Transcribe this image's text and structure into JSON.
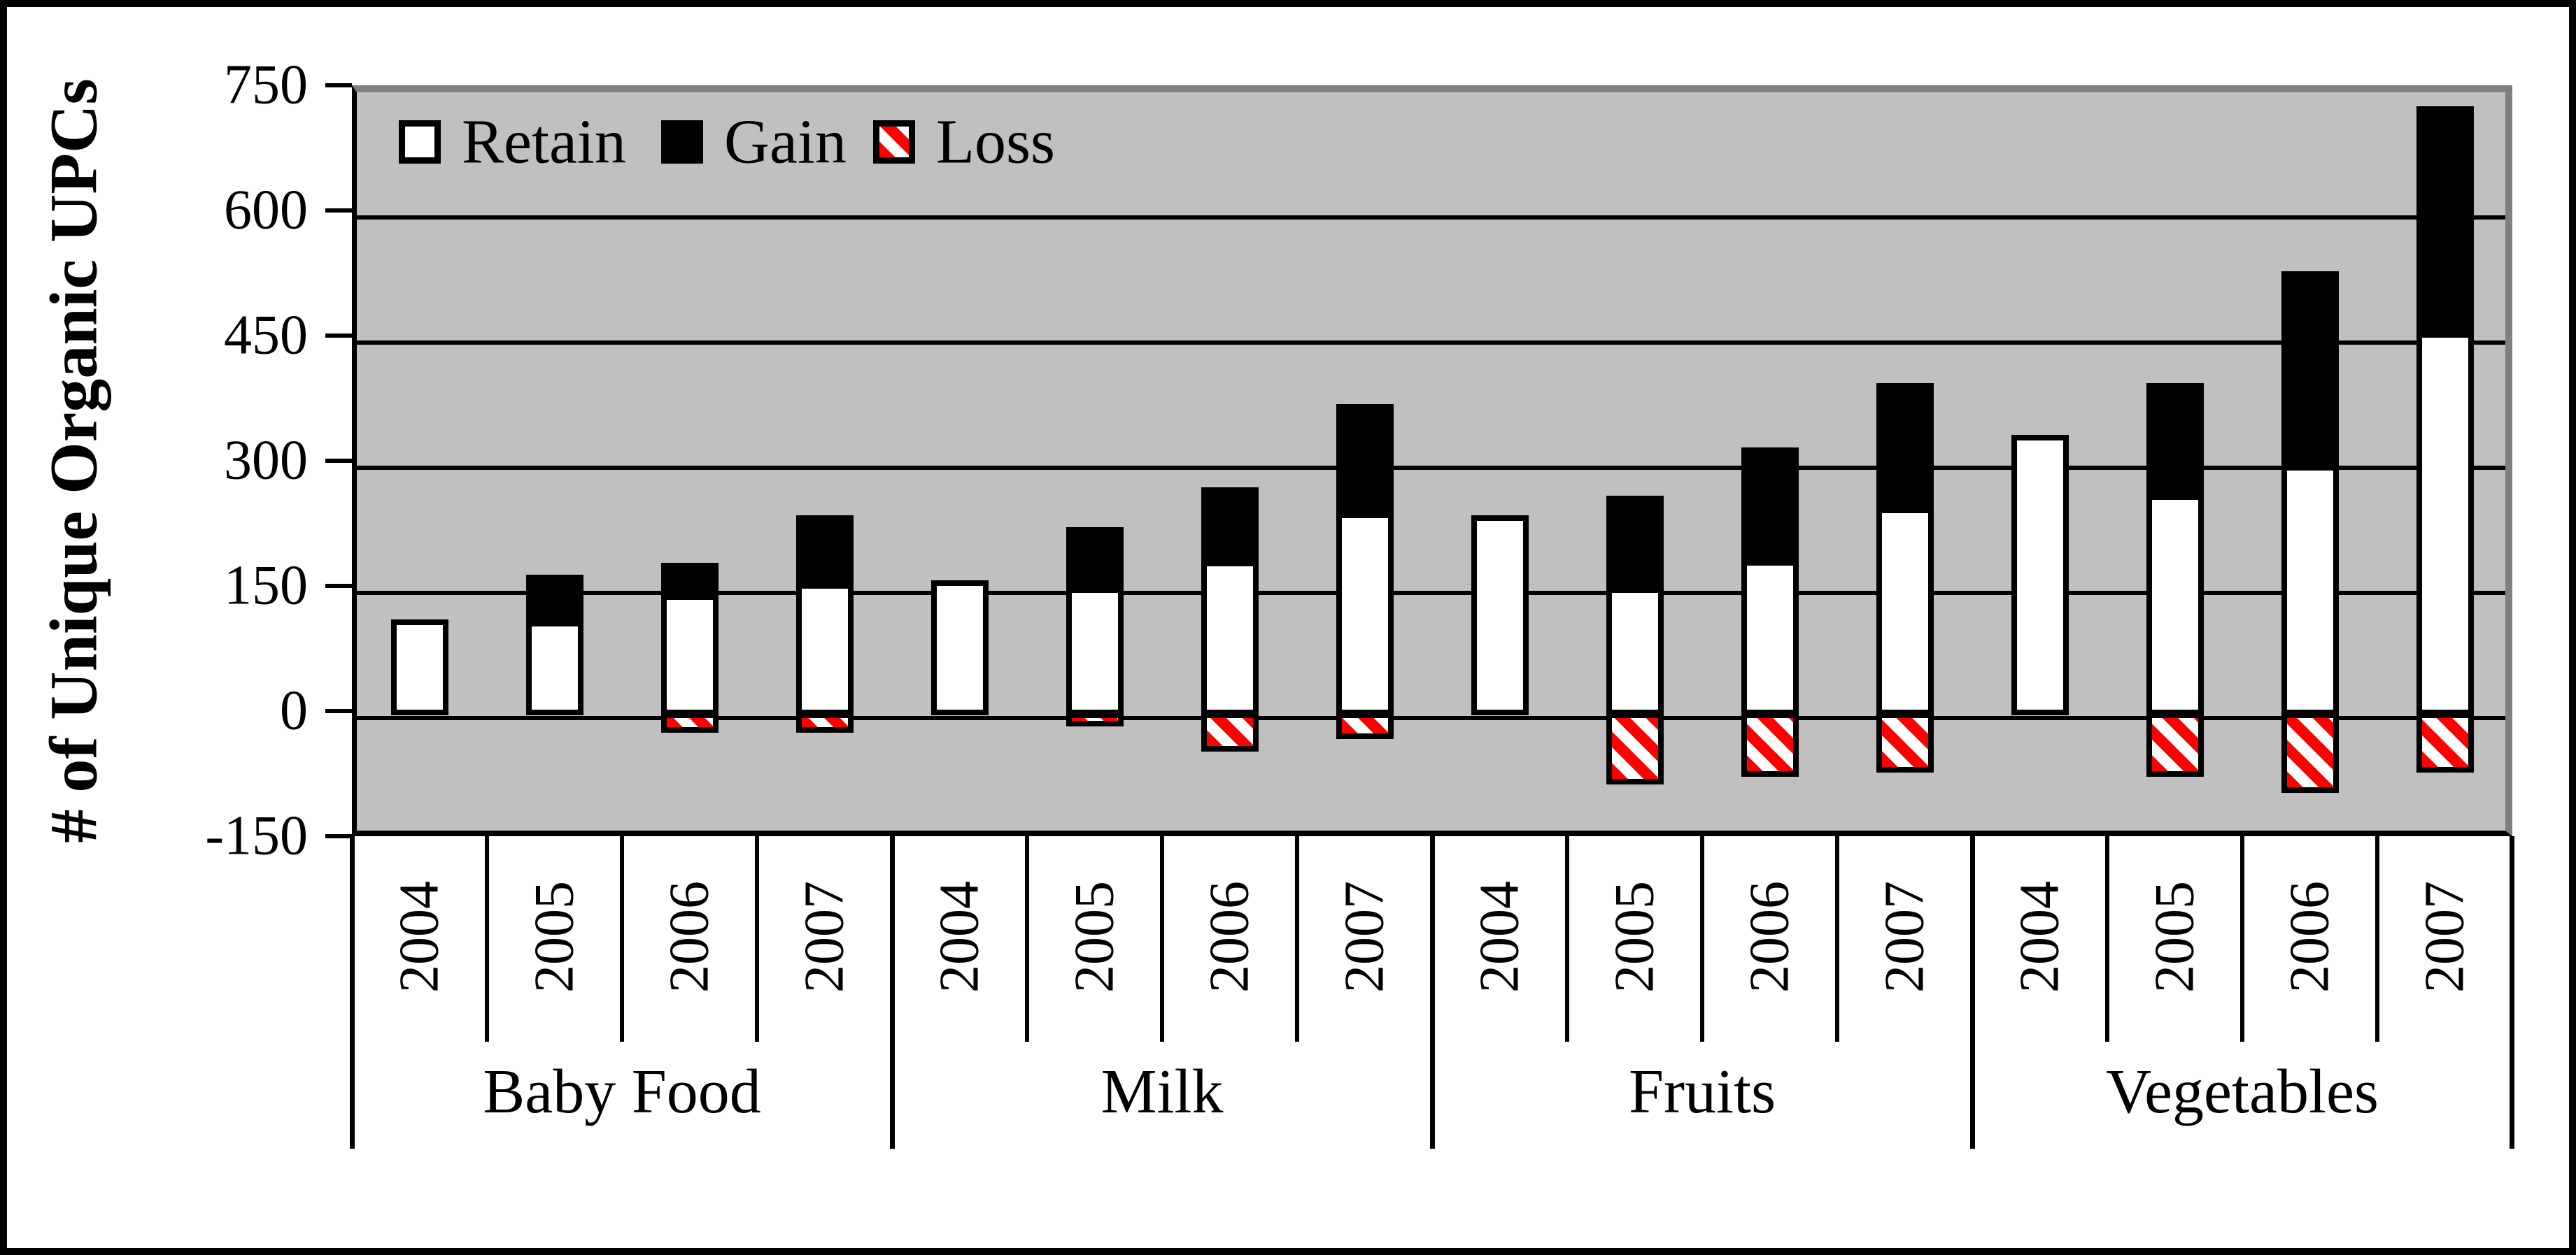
{
  "chart_data": {
    "type": "bar",
    "subtype": "stacked-vertical",
    "title": "",
    "ylabel": "# of Unique Organic UPCs",
    "xlabel": "",
    "ylim": [
      -150,
      750
    ],
    "yticks": [
      750,
      600,
      450,
      300,
      150,
      0,
      -150
    ],
    "gridlines_at": [
      600,
      450,
      300,
      150,
      0
    ],
    "grid": true,
    "legend_position": "top-left-inside",
    "legend": [
      {
        "name": "Retain",
        "style": "white-solid"
      },
      {
        "name": "Gain",
        "style": "black-solid"
      },
      {
        "name": "Loss",
        "style": "red-diagonal-hatch"
      }
    ],
    "categories": [
      "Baby Food",
      "Milk",
      "Fruits",
      "Vegetables"
    ],
    "years": [
      "2004",
      "2005",
      "2006",
      "2007"
    ],
    "groups": [
      {
        "category": "Baby Food",
        "bars": [
          {
            "year": "2004",
            "retain": 110,
            "gain": 0,
            "loss": 0
          },
          {
            "year": "2005",
            "retain": 108,
            "gain": 55,
            "loss": 0
          },
          {
            "year": "2006",
            "retain": 140,
            "gain": 38,
            "loss": -18
          },
          {
            "year": "2007",
            "retain": 153,
            "gain": 82,
            "loss": -18
          }
        ]
      },
      {
        "category": "Milk",
        "bars": [
          {
            "year": "2004",
            "retain": 157,
            "gain": 0,
            "loss": 0
          },
          {
            "year": "2005",
            "retain": 148,
            "gain": 72,
            "loss": -10
          },
          {
            "year": "2006",
            "retain": 180,
            "gain": 88,
            "loss": -40
          },
          {
            "year": "2007",
            "retain": 238,
            "gain": 130,
            "loss": -25
          }
        ]
      },
      {
        "category": "Fruits",
        "bars": [
          {
            "year": "2004",
            "retain": 235,
            "gain": 0,
            "loss": 0
          },
          {
            "year": "2005",
            "retain": 148,
            "gain": 110,
            "loss": -80
          },
          {
            "year": "2006",
            "retain": 181,
            "gain": 135,
            "loss": -70
          },
          {
            "year": "2007",
            "retain": 244,
            "gain": 149,
            "loss": -65
          }
        ]
      },
      {
        "category": "Vegetables",
        "bars": [
          {
            "year": "2004",
            "retain": 331,
            "gain": 0,
            "loss": 0
          },
          {
            "year": "2005",
            "retain": 260,
            "gain": 133,
            "loss": -70
          },
          {
            "year": "2006",
            "retain": 295,
            "gain": 232,
            "loss": -90
          },
          {
            "year": "2007",
            "retain": 454,
            "gain": 271,
            "loss": -65
          }
        ]
      }
    ],
    "colors": {
      "retain_fill": "#FFFFFF",
      "gain_fill": "#000000",
      "loss_stripe": "#FF0000",
      "loss_stripe_bg": "#FFFFFF",
      "plot_background": "#C0C0C0",
      "shadow_border": "#808080",
      "line": "#000000"
    }
  }
}
